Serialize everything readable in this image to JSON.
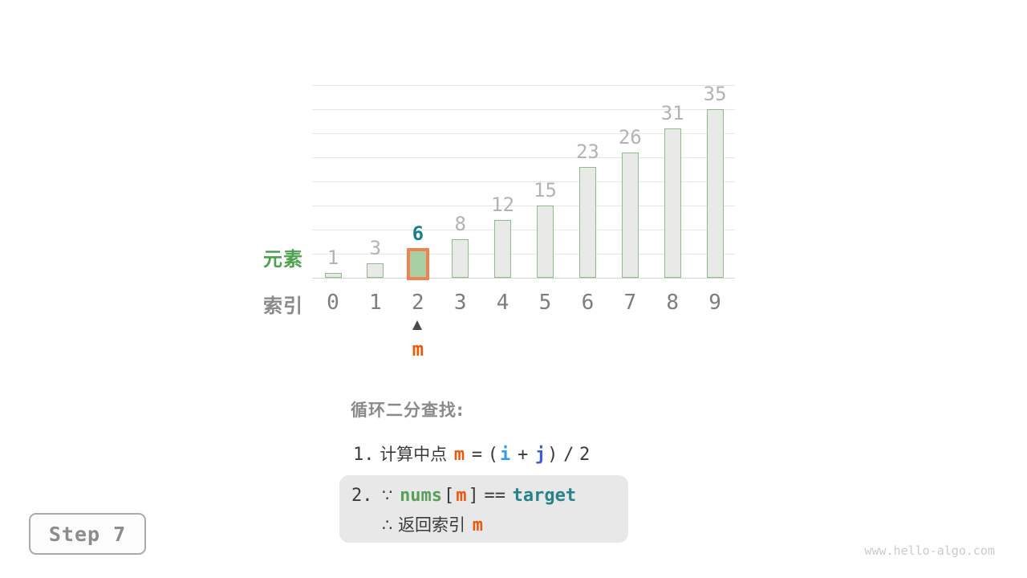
{
  "chart_data": {
    "type": "bar",
    "categories": [
      "0",
      "1",
      "2",
      "3",
      "4",
      "5",
      "6",
      "7",
      "8",
      "9"
    ],
    "values": [
      1,
      3,
      6,
      8,
      12,
      15,
      23,
      26,
      31,
      35
    ],
    "title": "",
    "xlabel": "索引",
    "ylabel": "元素",
    "ylim": [
      0,
      40
    ],
    "gridline_step": 5,
    "grid": true,
    "legend": "none",
    "highlight_index": 2,
    "highlight_value": 6,
    "pointer": {
      "index": 2,
      "label": "m"
    }
  },
  "axis": {
    "element_label": "元素",
    "index_label": "索引"
  },
  "steps": {
    "title": "循环二分查找:",
    "line1": {
      "num": "1.",
      "text": "计算中点",
      "m": "m",
      "eq": "=",
      "open_paren": "(",
      "i": "i",
      "plus": "+",
      "j": "j",
      "close_paren": ")",
      "slash": "/",
      "two": "2"
    },
    "line2": {
      "num": "2.",
      "because": "∵",
      "nums": "nums",
      "bracket_open": "[",
      "m": "m",
      "bracket_close": "]",
      "eq": "==",
      "target": "target",
      "therefore": "∴",
      "text": "返回索引",
      "m2": "m"
    }
  },
  "step_badge": {
    "label": "Step 7"
  },
  "watermark": {
    "text": "www.hello-algo.com"
  },
  "colors": {
    "bar_fill": "#e9e9e7",
    "bar_border": "#8cbc8c",
    "highlight_fill": "#a9cfa4",
    "highlight_border": "#f0824f",
    "value_label": "#b3b3b3",
    "highlight_value_label": "#1a7f8c",
    "index_label": "#7d7d7d",
    "element_axis_green": "#4da24f",
    "gray_heading": "#8a8a8a",
    "token_m_orange": "#e8590c",
    "token_i_blue": "#339af0",
    "token_j_blue": "#3b5bdb",
    "token_nums_green": "#56a05a",
    "token_target_teal": "#268389",
    "text_dark": "#3a3a3a"
  }
}
